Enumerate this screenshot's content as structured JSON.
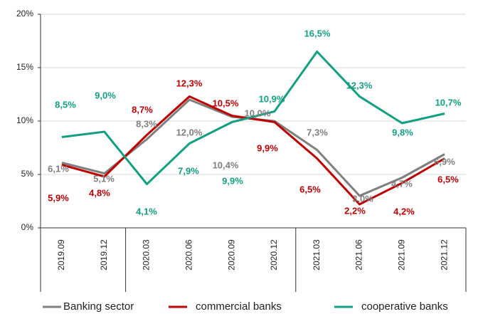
{
  "chart_data": {
    "type": "line",
    "categories": [
      "2019.09",
      "2019.12",
      "2020.03",
      "2020.06",
      "2020.09",
      "2020.12",
      "2021.03",
      "2021.06",
      "2021.09",
      "2021.12"
    ],
    "series": [
      {
        "name": "Banking sector",
        "color": "#7f7f7f",
        "values": [
          6.1,
          5.1,
          8.3,
          12.0,
          10.4,
          10.0,
          7.3,
          3.0,
          4.7,
          6.9
        ],
        "value_labels": [
          "6,1%",
          "5,1%",
          "8,3%",
          "12,0%",
          "10,4%",
          "10,0%",
          "7,3%",
          "3,0%",
          "4,7%",
          "6,9%"
        ]
      },
      {
        "name": "commercial banks",
        "color": "#c00000",
        "values": [
          5.9,
          4.8,
          8.7,
          12.3,
          10.5,
          9.9,
          6.5,
          2.2,
          4.2,
          6.5
        ],
        "value_labels": [
          "5,9%",
          "4,8%",
          "8,7%",
          "12,3%",
          "10,5%",
          "9,9%",
          "6,5%",
          "2,2%",
          "4,2%",
          "6,5%"
        ]
      },
      {
        "name": "cooperative banks",
        "color": "#12a083",
        "values": [
          8.5,
          9.0,
          4.1,
          7.9,
          9.9,
          10.9,
          16.5,
          12.3,
          9.8,
          10.7
        ],
        "value_labels": [
          "8,5%",
          "9,0%",
          "4,1%",
          "7,9%",
          "9,9%",
          "10,9%",
          "16,5%",
          "12,3%",
          "9,8%",
          "10,7%"
        ]
      }
    ],
    "ylim": [
      0,
      20
    ],
    "yticks": [
      {
        "value": 0,
        "label": "0%"
      },
      {
        "value": 5,
        "label": "5%"
      },
      {
        "value": 10,
        "label": "10%"
      },
      {
        "value": 15,
        "label": "15%"
      },
      {
        "value": 20,
        "label": "20%"
      }
    ],
    "grid": true,
    "legend": "bottom"
  }
}
